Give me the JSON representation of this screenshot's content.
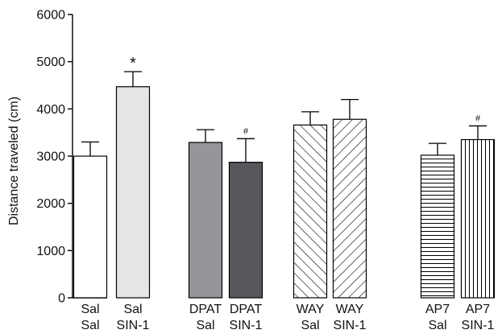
{
  "chart_data": {
    "type": "bar",
    "ylabel": "Distance traveled (cm)",
    "xlabel": "",
    "ylim": [
      0,
      6000
    ],
    "yticks": [
      0,
      1000,
      2000,
      3000,
      4000,
      5000,
      6000
    ],
    "grid": false,
    "legend": "none",
    "bars": [
      {
        "top_label": "Sal",
        "bottom_label": "Sal",
        "value": 3000,
        "error": 300,
        "fill": "white",
        "annotation": ""
      },
      {
        "top_label": "Sal",
        "bottom_label": "SIN-1",
        "value": 4470,
        "error": 320,
        "fill": "light-gray",
        "annotation": "*"
      },
      {
        "top_label": "DPAT",
        "bottom_label": "Sal",
        "value": 3290,
        "error": 270,
        "fill": "medium-gray",
        "annotation": ""
      },
      {
        "top_label": "DPAT",
        "bottom_label": "SIN-1",
        "value": 2870,
        "error": 500,
        "fill": "dark-gray",
        "annotation": "#"
      },
      {
        "top_label": "WAY",
        "bottom_label": "Sal",
        "value": 3660,
        "error": 280,
        "fill": "diagonal-forward",
        "annotation": ""
      },
      {
        "top_label": "WAY",
        "bottom_label": "SIN-1",
        "value": 3780,
        "error": 420,
        "fill": "diagonal-back",
        "annotation": ""
      },
      {
        "top_label": "AP7",
        "bottom_label": "Sal",
        "value": 3020,
        "error": 250,
        "fill": "horizontal-lines",
        "annotation": ""
      },
      {
        "top_label": "AP7",
        "bottom_label": "SIN-1",
        "value": 3350,
        "error": 290,
        "fill": "vertical-lines",
        "annotation": "#"
      }
    ],
    "colors": {
      "white": "#ffffff",
      "light-gray": "#e4e5e7",
      "medium-gray": "#949699",
      "dark-gray": "#57585c",
      "stroke": "#000000"
    }
  }
}
